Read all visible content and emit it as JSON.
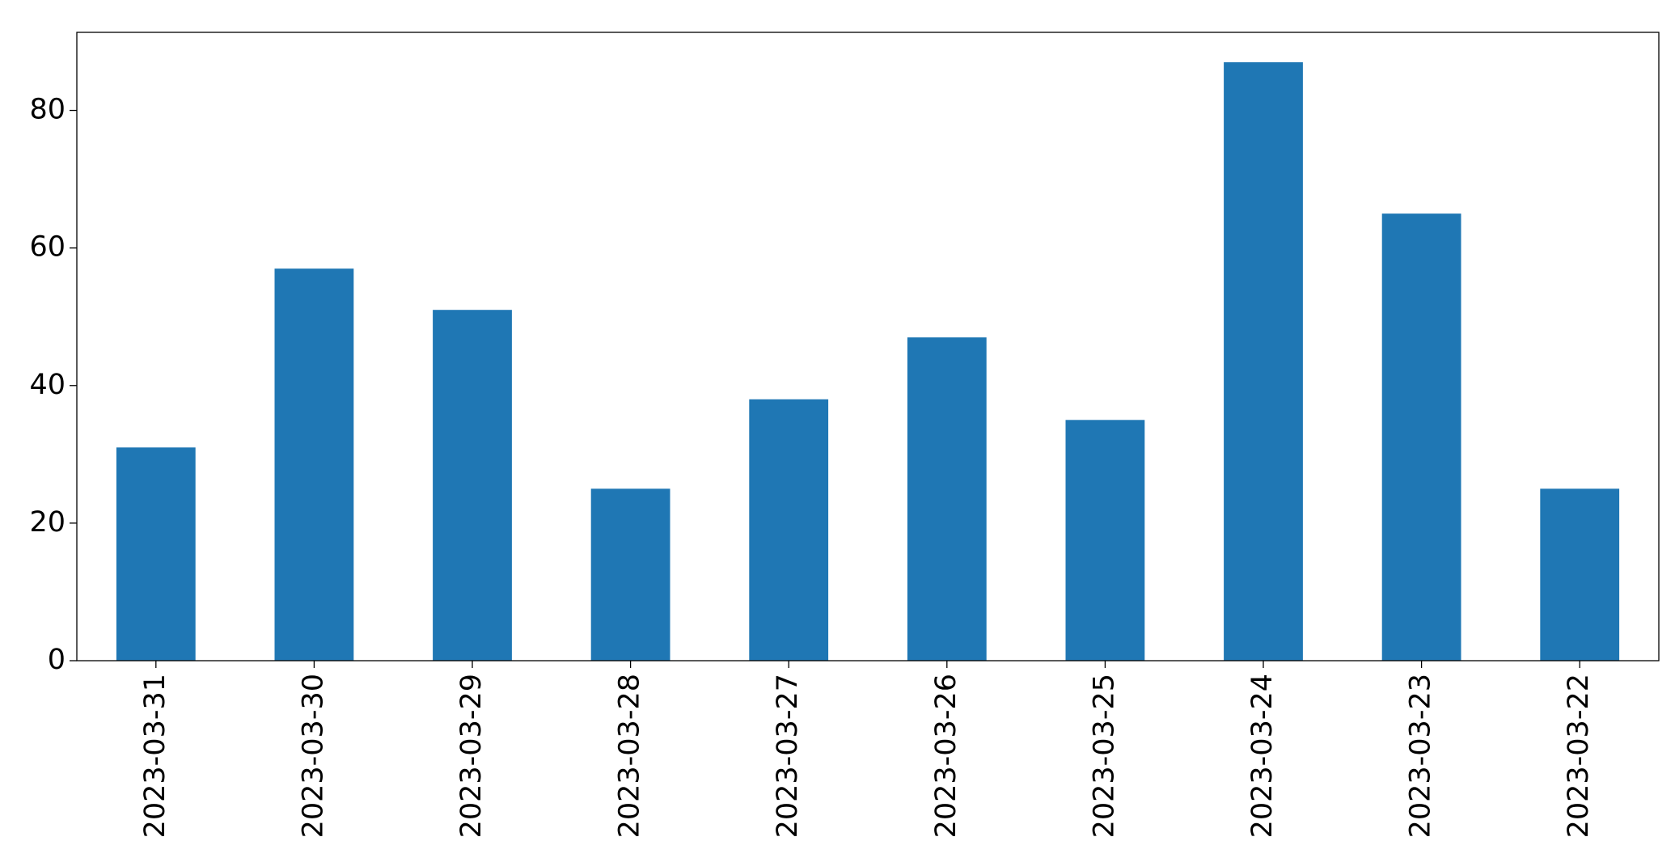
{
  "chart_data": {
    "type": "bar",
    "categories": [
      "2023-03-31",
      "2023-03-30",
      "2023-03-29",
      "2023-03-28",
      "2023-03-27",
      "2023-03-26",
      "2023-03-25",
      "2023-03-24",
      "2023-03-23",
      "2023-03-22"
    ],
    "values": [
      31,
      57,
      51,
      25,
      38,
      47,
      35,
      87,
      65,
      25
    ],
    "color": "#1f77b4",
    "ylim": [
      0,
      91.35
    ],
    "yticks": [
      0,
      20,
      40,
      60,
      80
    ]
  }
}
